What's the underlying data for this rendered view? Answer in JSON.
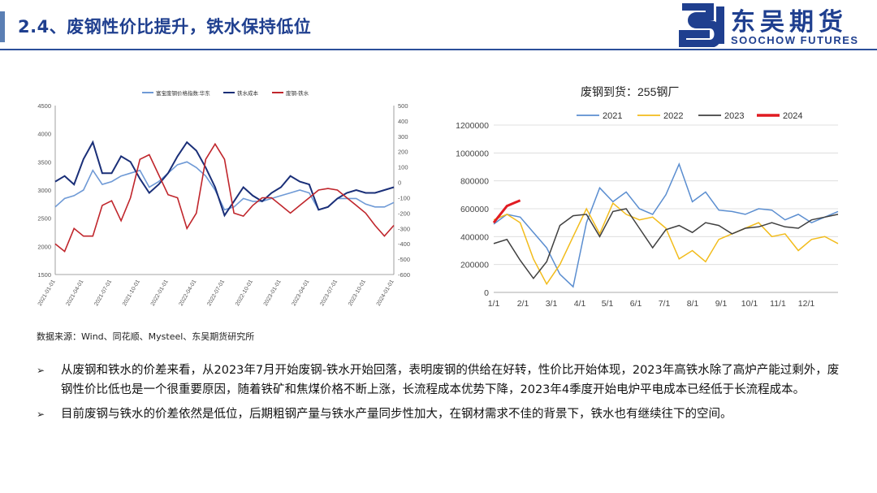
{
  "header": {
    "title": "2.4、废钢性价比提升，铁水保持低位",
    "logo_cn": "东吴期货",
    "logo_en": "SOOCHOW FUTURES"
  },
  "colors": {
    "brand": "#1f3f8f",
    "accent": "#5b7fb4"
  },
  "chart_data": [
    {
      "type": "line",
      "title": "",
      "legend": [
        "富宝废钢价格指数:华东",
        "铁水成本",
        "废钢-铁水"
      ],
      "legend_placement": "top",
      "colors": [
        "#6f9ad6",
        "#1a2f78",
        "#c0262c"
      ],
      "x_ticks": [
        "2021-01-01",
        "2021-04-01",
        "2021-07-01",
        "2021-10-01",
        "2022-01-01",
        "2022-04-01",
        "2022-07-01",
        "2022-10-01",
        "2023-01-01",
        "2023-04-01",
        "2023-07-01",
        "2023-10-01",
        "2024-01-01"
      ],
      "y_left": {
        "ticks": [
          1500,
          2000,
          2500,
          3000,
          3500,
          4000,
          4500
        ],
        "lim": [
          1500,
          4500
        ]
      },
      "y_right": {
        "ticks": [
          -600,
          -500,
          -400,
          -300,
          -200,
          -100,
          0,
          100,
          200,
          300,
          400,
          500
        ],
        "lim": [
          -600,
          500
        ]
      },
      "grid": false,
      "series": [
        {
          "name": "富宝废钢价格指数:华东",
          "axis": "left",
          "x": [
            "2021-01",
            "2021-02",
            "2021-03",
            "2021-04",
            "2021-05",
            "2021-06",
            "2021-07",
            "2021-08",
            "2021-09",
            "2021-10",
            "2021-11",
            "2021-12",
            "2022-01",
            "2022-02",
            "2022-03",
            "2022-04",
            "2022-05",
            "2022-06",
            "2022-07",
            "2022-08",
            "2022-09",
            "2022-10",
            "2022-11",
            "2022-12",
            "2023-01",
            "2023-02",
            "2023-03",
            "2023-04",
            "2023-05",
            "2023-06",
            "2023-07",
            "2023-08",
            "2023-09",
            "2023-10",
            "2023-11",
            "2023-12",
            "2024-01"
          ],
          "values": [
            2700,
            2850,
            2900,
            3000,
            3350,
            3100,
            3150,
            3250,
            3300,
            3350,
            3050,
            3150,
            3300,
            3450,
            3500,
            3400,
            3250,
            3000,
            2650,
            2700,
            2850,
            2800,
            2800,
            2850,
            2900,
            2950,
            3000,
            2950,
            2650,
            2700,
            2850,
            2850,
            2850,
            2750,
            2700,
            2700,
            2780
          ]
        },
        {
          "name": "铁水成本",
          "axis": "left",
          "x": [
            "2021-01",
            "2021-02",
            "2021-03",
            "2021-04",
            "2021-05",
            "2021-06",
            "2021-07",
            "2021-08",
            "2021-09",
            "2021-10",
            "2021-11",
            "2021-12",
            "2022-01",
            "2022-02",
            "2022-03",
            "2022-04",
            "2022-05",
            "2022-06",
            "2022-07",
            "2022-08",
            "2022-09",
            "2022-10",
            "2022-11",
            "2022-12",
            "2023-01",
            "2023-02",
            "2023-03",
            "2023-04",
            "2023-05",
            "2023-06",
            "2023-07",
            "2023-08",
            "2023-09",
            "2023-10",
            "2023-11",
            "2023-12",
            "2024-01"
          ],
          "values": [
            3150,
            3250,
            3100,
            3550,
            3850,
            3300,
            3300,
            3600,
            3500,
            3200,
            2950,
            3100,
            3300,
            3600,
            3850,
            3700,
            3400,
            3050,
            2550,
            2800,
            3050,
            2900,
            2800,
            2950,
            3050,
            3250,
            3150,
            3100,
            2650,
            2700,
            2850,
            2950,
            3000,
            2950,
            2950,
            3000,
            3050
          ]
        },
        {
          "name": "废钢-铁水",
          "axis": "right",
          "x": [
            "2021-01",
            "2021-02",
            "2021-03",
            "2021-04",
            "2021-05",
            "2021-06",
            "2021-07",
            "2021-08",
            "2021-09",
            "2021-10",
            "2021-11",
            "2021-12",
            "2022-01",
            "2022-02",
            "2022-03",
            "2022-04",
            "2022-05",
            "2022-06",
            "2022-07",
            "2022-08",
            "2022-09",
            "2022-10",
            "2022-11",
            "2022-12",
            "2023-01",
            "2023-02",
            "2023-03",
            "2023-04",
            "2023-05",
            "2023-06",
            "2023-07",
            "2023-08",
            "2023-09",
            "2023-10",
            "2023-11",
            "2023-12",
            "2024-01"
          ],
          "values": [
            -400,
            -450,
            -300,
            -350,
            -350,
            -150,
            -120,
            -250,
            -100,
            150,
            180,
            50,
            -80,
            -100,
            -300,
            -200,
            150,
            250,
            150,
            -200,
            -220,
            -150,
            -100,
            -100,
            -150,
            -200,
            -150,
            -100,
            -50,
            -40,
            -50,
            -100,
            -150,
            -200,
            -280,
            -350,
            -280
          ]
        }
      ]
    },
    {
      "type": "line",
      "title": "废钢到货：255钢厂",
      "legend": [
        "2021",
        "2022",
        "2023",
        "2024"
      ],
      "legend_placement": "top",
      "colors": [
        "#5b8ed0",
        "#f2bc1c",
        "#404040",
        "#e11b22"
      ],
      "x_ticks": [
        "1/1",
        "2/1",
        "3/1",
        "4/1",
        "5/1",
        "6/1",
        "7/1",
        "8/1",
        "9/1",
        "10/1",
        "11/1",
        "12/1"
      ],
      "ylim": [
        0,
        1200000
      ],
      "y_ticks": [
        0,
        200000,
        400000,
        600000,
        800000,
        1000000,
        1200000
      ],
      "grid": true,
      "x_weeks": [
        1,
        3,
        5,
        7,
        9,
        11,
        13,
        15,
        17,
        19,
        21,
        23,
        25,
        27,
        29,
        31,
        33,
        35,
        37,
        39,
        41,
        43,
        45,
        47,
        49,
        51,
        53
      ],
      "series": [
        {
          "name": "2021",
          "values": [
            490000,
            560000,
            540000,
            430000,
            320000,
            130000,
            40000,
            500000,
            750000,
            650000,
            720000,
            600000,
            560000,
            700000,
            920000,
            650000,
            720000,
            590000,
            580000,
            560000,
            600000,
            590000,
            520000,
            560000,
            500000,
            540000,
            580000
          ]
        },
        {
          "name": "2022",
          "values": [
            520000,
            560000,
            500000,
            240000,
            60000,
            200000,
            400000,
            600000,
            420000,
            640000,
            560000,
            520000,
            540000,
            460000,
            240000,
            300000,
            220000,
            380000,
            420000,
            460000,
            500000,
            400000,
            420000,
            300000,
            380000,
            400000,
            350000
          ]
        },
        {
          "name": "2023",
          "values": [
            350000,
            380000,
            230000,
            100000,
            220000,
            480000,
            550000,
            560000,
            400000,
            580000,
            600000,
            460000,
            320000,
            450000,
            480000,
            430000,
            500000,
            480000,
            420000,
            460000,
            470000,
            500000,
            470000,
            460000,
            520000,
            540000,
            560000
          ]
        },
        {
          "name": "2024",
          "values": [
            500000,
            620000,
            660000
          ]
        }
      ]
    }
  ],
  "source_text": "数据来源：Wind、同花顺、Mysteel、东吴期货研究所",
  "bullets": [
    {
      "marker": "➢",
      "text": "从废钢和铁水的价差来看，从2023年7月开始废钢-铁水开始回落，表明废钢的供给在好转，性价比开始体现，2023年高铁水除了高炉产能过剩外，废钢性价比低也是一个很重要原因，随着铁矿和焦煤价格不断上涨，长流程成本优势下降，2023年4季度开始电炉平电成本已经低于长流程成本。"
    },
    {
      "marker": "➢",
      "text": "目前废钢与铁水的价差依然是低位，后期粗钢产量与铁水产量同步性加大，在钢材需求不佳的背景下，铁水也有继续往下的空间。"
    }
  ]
}
